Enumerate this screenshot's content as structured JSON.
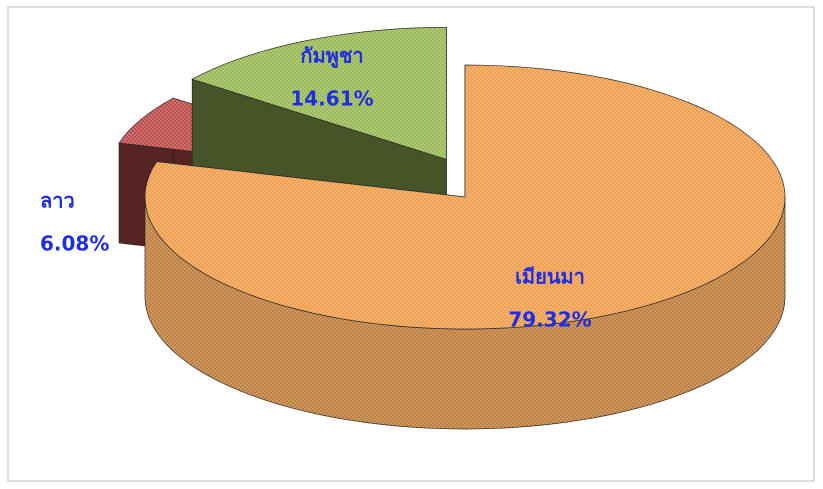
{
  "chart_data": {
    "type": "pie",
    "categories": [
      "เมียนมา",
      "ลาว",
      "กัมพูชา"
    ],
    "values": [
      79.32,
      6.08,
      14.61
    ],
    "value_labels": [
      "79.32%",
      "6.08%",
      "14.61%"
    ],
    "colors": [
      "#f0a050",
      "#c0504d",
      "#9bbb59"
    ]
  }
}
